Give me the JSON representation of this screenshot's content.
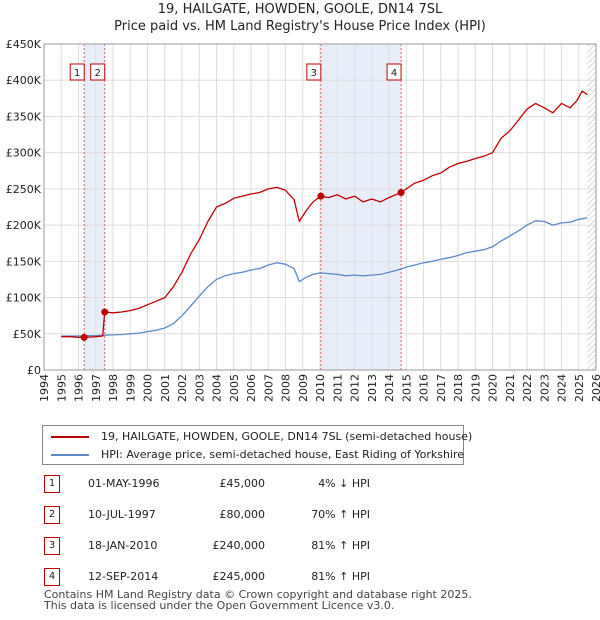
{
  "chart_data": {
    "type": "line",
    "title": "19, HAILGATE, HOWDEN, GOOLE, DN14 7SL",
    "subtitle": "Price paid vs. HM Land Registry's House Price Index (HPI)",
    "xlabel": "",
    "ylabel": "",
    "xlim": [
      1994,
      2026
    ],
    "ylim": [
      0,
      450000
    ],
    "y_ticks": [
      0,
      50000,
      100000,
      150000,
      200000,
      250000,
      300000,
      350000,
      400000,
      450000
    ],
    "y_tick_labels": [
      "£0",
      "£50K",
      "£100K",
      "£150K",
      "£200K",
      "£250K",
      "£300K",
      "£350K",
      "£400K",
      "£450K"
    ],
    "x_ticks": [
      1994,
      1995,
      1996,
      1997,
      1998,
      1999,
      2000,
      2001,
      2002,
      2003,
      2004,
      2005,
      2006,
      2007,
      2008,
      2009,
      2010,
      2011,
      2012,
      2013,
      2014,
      2015,
      2016,
      2017,
      2018,
      2019,
      2020,
      2021,
      2022,
      2023,
      2024,
      2025,
      2026
    ],
    "x_tick_labels": [
      "1994",
      "1995",
      "1996",
      "1997",
      "1998",
      "1999",
      "2000",
      "2001",
      "2002",
      "2003",
      "2004",
      "2005",
      "2006",
      "2007",
      "2008",
      "2009",
      "2010",
      "2011",
      "2012",
      "2013",
      "2014",
      "2015",
      "2016",
      "2017",
      "2018",
      "2019",
      "2020",
      "2021",
      "2022",
      "2023",
      "2024",
      "2025",
      "2026"
    ],
    "shaded_regions": [
      [
        1996.33,
        1997.52
      ],
      [
        2010.05,
        2014.7
      ]
    ],
    "hatched_after": 2025.5,
    "series": [
      {
        "name": "19, HAILGATE, HOWDEN, GOOLE, DN14 7SL (semi-detached house)",
        "color": "#c00000",
        "x": [
          1995.0,
          1995.5,
          1996.0,
          1996.33,
          1996.7,
          1997.0,
          1997.4,
          1997.52,
          1998.0,
          1998.5,
          1999.0,
          1999.5,
          2000.0,
          2000.5,
          2001.0,
          2001.5,
          2002.0,
          2002.5,
          2003.0,
          2003.5,
          2004.0,
          2004.5,
          2005.0,
          2005.5,
          2006.0,
          2006.5,
          2007.0,
          2007.5,
          2008.0,
          2008.5,
          2008.8,
          2009.2,
          2009.6,
          2010.05,
          2010.5,
          2011.0,
          2011.5,
          2012.0,
          2012.5,
          2013.0,
          2013.5,
          2014.0,
          2014.7,
          2015.0,
          2015.5,
          2016.0,
          2016.5,
          2017.0,
          2017.5,
          2018.0,
          2018.5,
          2019.0,
          2019.5,
          2020.0,
          2020.5,
          2021.0,
          2021.5,
          2022.0,
          2022.5,
          2023.0,
          2023.5,
          2024.0,
          2024.5,
          2024.9,
          2025.2,
          2025.5
        ],
        "y": [
          46000,
          46000,
          45000,
          45000,
          45500,
          46000,
          47000,
          80000,
          79000,
          80000,
          82000,
          85000,
          90000,
          95000,
          100000,
          115000,
          135000,
          160000,
          180000,
          205000,
          225000,
          230000,
          237000,
          240000,
          243000,
          245000,
          250000,
          252000,
          248000,
          235000,
          205000,
          220000,
          232000,
          240000,
          238000,
          242000,
          236000,
          240000,
          232000,
          236000,
          232000,
          238000,
          245000,
          250000,
          258000,
          262000,
          268000,
          272000,
          280000,
          285000,
          288000,
          292000,
          295000,
          300000,
          320000,
          330000,
          345000,
          360000,
          368000,
          362000,
          355000,
          368000,
          362000,
          372000,
          385000,
          380000
        ]
      },
      {
        "name": "HPI: Average price, semi-detached house, East Riding of Yorkshire",
        "color": "#5b8ac9",
        "x": [
          1995.0,
          1995.5,
          1996.0,
          1996.5,
          1997.0,
          1997.5,
          1998.0,
          1998.5,
          1999.0,
          1999.5,
          2000.0,
          2000.5,
          2001.0,
          2001.5,
          2002.0,
          2002.5,
          2003.0,
          2003.5,
          2004.0,
          2004.5,
          2005.0,
          2005.5,
          2006.0,
          2006.5,
          2007.0,
          2007.5,
          2008.0,
          2008.5,
          2008.8,
          2009.2,
          2009.6,
          2010.0,
          2010.5,
          2011.0,
          2011.5,
          2012.0,
          2012.5,
          2013.0,
          2013.5,
          2014.0,
          2014.5,
          2015.0,
          2015.5,
          2016.0,
          2016.5,
          2017.0,
          2017.5,
          2018.0,
          2018.5,
          2019.0,
          2019.5,
          2020.0,
          2020.5,
          2021.0,
          2021.5,
          2022.0,
          2022.5,
          2023.0,
          2023.5,
          2024.0,
          2024.5,
          2025.0,
          2025.5
        ],
        "y": [
          47000,
          47000,
          47000,
          47500,
          47500,
          48000,
          48500,
          49000,
          50000,
          51000,
          53000,
          55000,
          58000,
          64000,
          75000,
          88000,
          102000,
          115000,
          125000,
          130000,
          133000,
          135000,
          138000,
          140000,
          145000,
          148000,
          146000,
          140000,
          122000,
          128000,
          132000,
          134000,
          133000,
          132000,
          130000,
          131000,
          130000,
          131000,
          132000,
          135000,
          138000,
          142000,
          145000,
          148000,
          150000,
          153000,
          155000,
          158000,
          162000,
          164000,
          166000,
          170000,
          178000,
          185000,
          192000,
          200000,
          206000,
          205000,
          200000,
          203000,
          204000,
          208000,
          210000
        ]
      }
    ],
    "sales_markers": [
      {
        "label": "1",
        "x": 1996.33,
        "y": 45000
      },
      {
        "label": "2",
        "x": 1997.52,
        "y": 80000
      },
      {
        "label": "3",
        "x": 2010.05,
        "y": 240000
      },
      {
        "label": "4",
        "x": 2014.7,
        "y": 245000
      }
    ]
  },
  "title_line1": "19, HAILGATE, HOWDEN, GOOLE, DN14 7SL",
  "title_line2": "Price paid vs. HM Land Registry's House Price Index (HPI)",
  "legend": {
    "property_label": "19, HAILGATE, HOWDEN, GOOLE, DN14 7SL (semi-detached house)",
    "hpi_label": "HPI: Average price, semi-detached house, East Riding of Yorkshire",
    "property_color": "#c00000",
    "hpi_color": "#5b8ac9"
  },
  "sales": [
    {
      "num": "1",
      "date": "01-MAY-1996",
      "price": "£45,000",
      "hpi": "4% ↓ HPI"
    },
    {
      "num": "2",
      "date": "10-JUL-1997",
      "price": "£80,000",
      "hpi": "70% ↑ HPI"
    },
    {
      "num": "3",
      "date": "18-JAN-2010",
      "price": "£240,000",
      "hpi": "81% ↑ HPI"
    },
    {
      "num": "4",
      "date": "12-SEP-2014",
      "price": "£245,000",
      "hpi": "81% ↑ HPI"
    }
  ],
  "footer_line1": "Contains HM Land Registry data © Crown copyright and database right 2025.",
  "footer_line2": "This data is licensed under the Open Government Licence v3.0."
}
